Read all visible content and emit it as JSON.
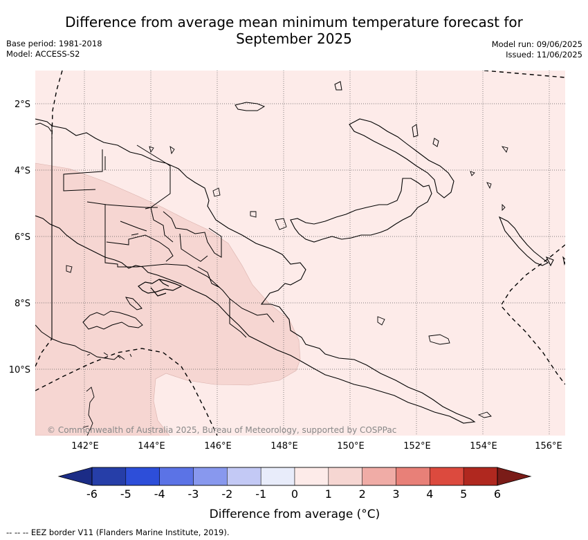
{
  "title": {
    "line1": "Difference from average mean minimum temperature forecast for",
    "line2": "September 2025"
  },
  "meta_left": {
    "base_period": "Base period: 1981-2018",
    "model": "Model: ACCESS-S2"
  },
  "meta_right": {
    "model_run": "Model run: 09/06/2025",
    "issued": "Issued: 11/06/2025"
  },
  "map": {
    "lat_labels": [
      "2°S",
      "4°S",
      "6°S",
      "8°S",
      "10°S"
    ],
    "lon_labels": [
      "142°E",
      "144°E",
      "146°E",
      "148°E",
      "150°E",
      "152°E",
      "154°E",
      "156°E"
    ],
    "copyright": "© Commonwealth of Australia 2025, Bureau of Meteorology, supported by COSPPac",
    "colors": {
      "land_border": "#000000",
      "anomaly_0_1": "#fdebe9",
      "anomaly_1_2": "#f6d6d2",
      "grid": "#555555"
    }
  },
  "colorbar": {
    "ticks": [
      "-6",
      "-5",
      "-4",
      "-3",
      "-2",
      "-1",
      "0",
      "1",
      "2",
      "3",
      "4",
      "5",
      "6"
    ],
    "colors": [
      "#263ea8",
      "#2d4ed9",
      "#5b73e6",
      "#8898ee",
      "#c3c9f5",
      "#e8ecfa",
      "#fdebe9",
      "#f6d6d2",
      "#f0aca6",
      "#e88078",
      "#dc4a3e",
      "#b0281f"
    ],
    "extend_low_color": "#1b2c86",
    "extend_high_color": "#7a1c18",
    "label": "Difference from average (°C)"
  },
  "footer_note": "--  --  -- EEZ border V11 (Flanders Marine Institute, 2019)."
}
